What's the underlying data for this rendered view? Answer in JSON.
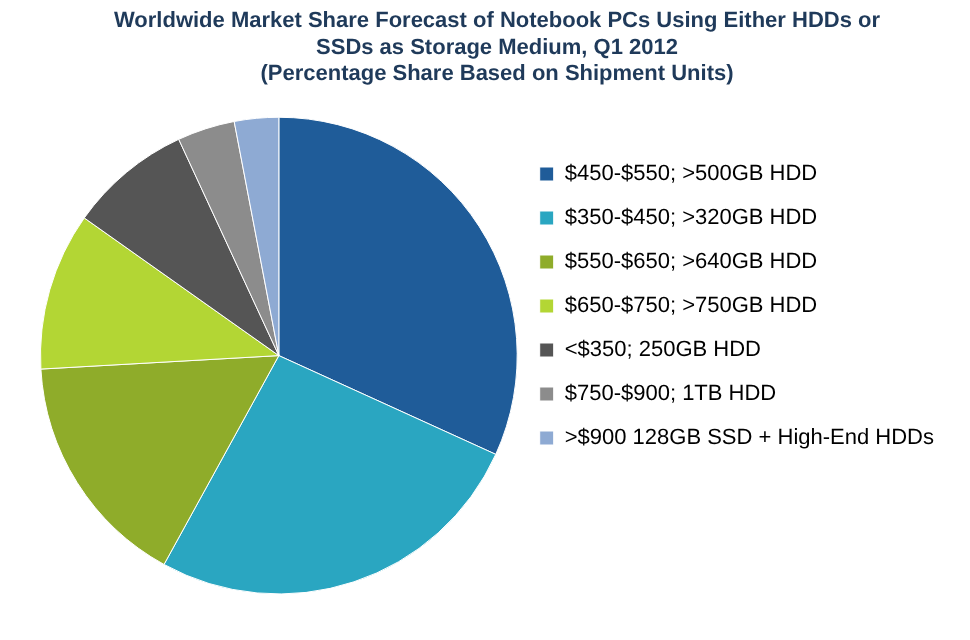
{
  "chart_data": {
    "type": "pie",
    "title": "Worldwide Market Share Forecast of Notebook PCs Using Either HDDs or\nSSDs as Storage Medium, Q1 2012",
    "subtitle": "(Percentage Share Based on Shipment Units)",
    "categories": [
      "$450-$550; >500GB HDD",
      "$350-$450; >320GB HDD",
      "$550-$650; >640GB HDD",
      "$650-$750; >750GB HDD",
      "<$350; 250GB HDD",
      "$750-$900; 1TB HDD",
      ">$900 128GB SSD + High-End HDDs"
    ],
    "values": [
      31.8,
      26.2,
      16.1,
      10.7,
      8.3,
      3.9,
      3.0
    ],
    "colors": [
      "#1f5c99",
      "#2aa6c1",
      "#8fac2a",
      "#b3d634",
      "#555555",
      "#8c8c8c",
      "#8eaad3"
    ],
    "legend": "right"
  }
}
